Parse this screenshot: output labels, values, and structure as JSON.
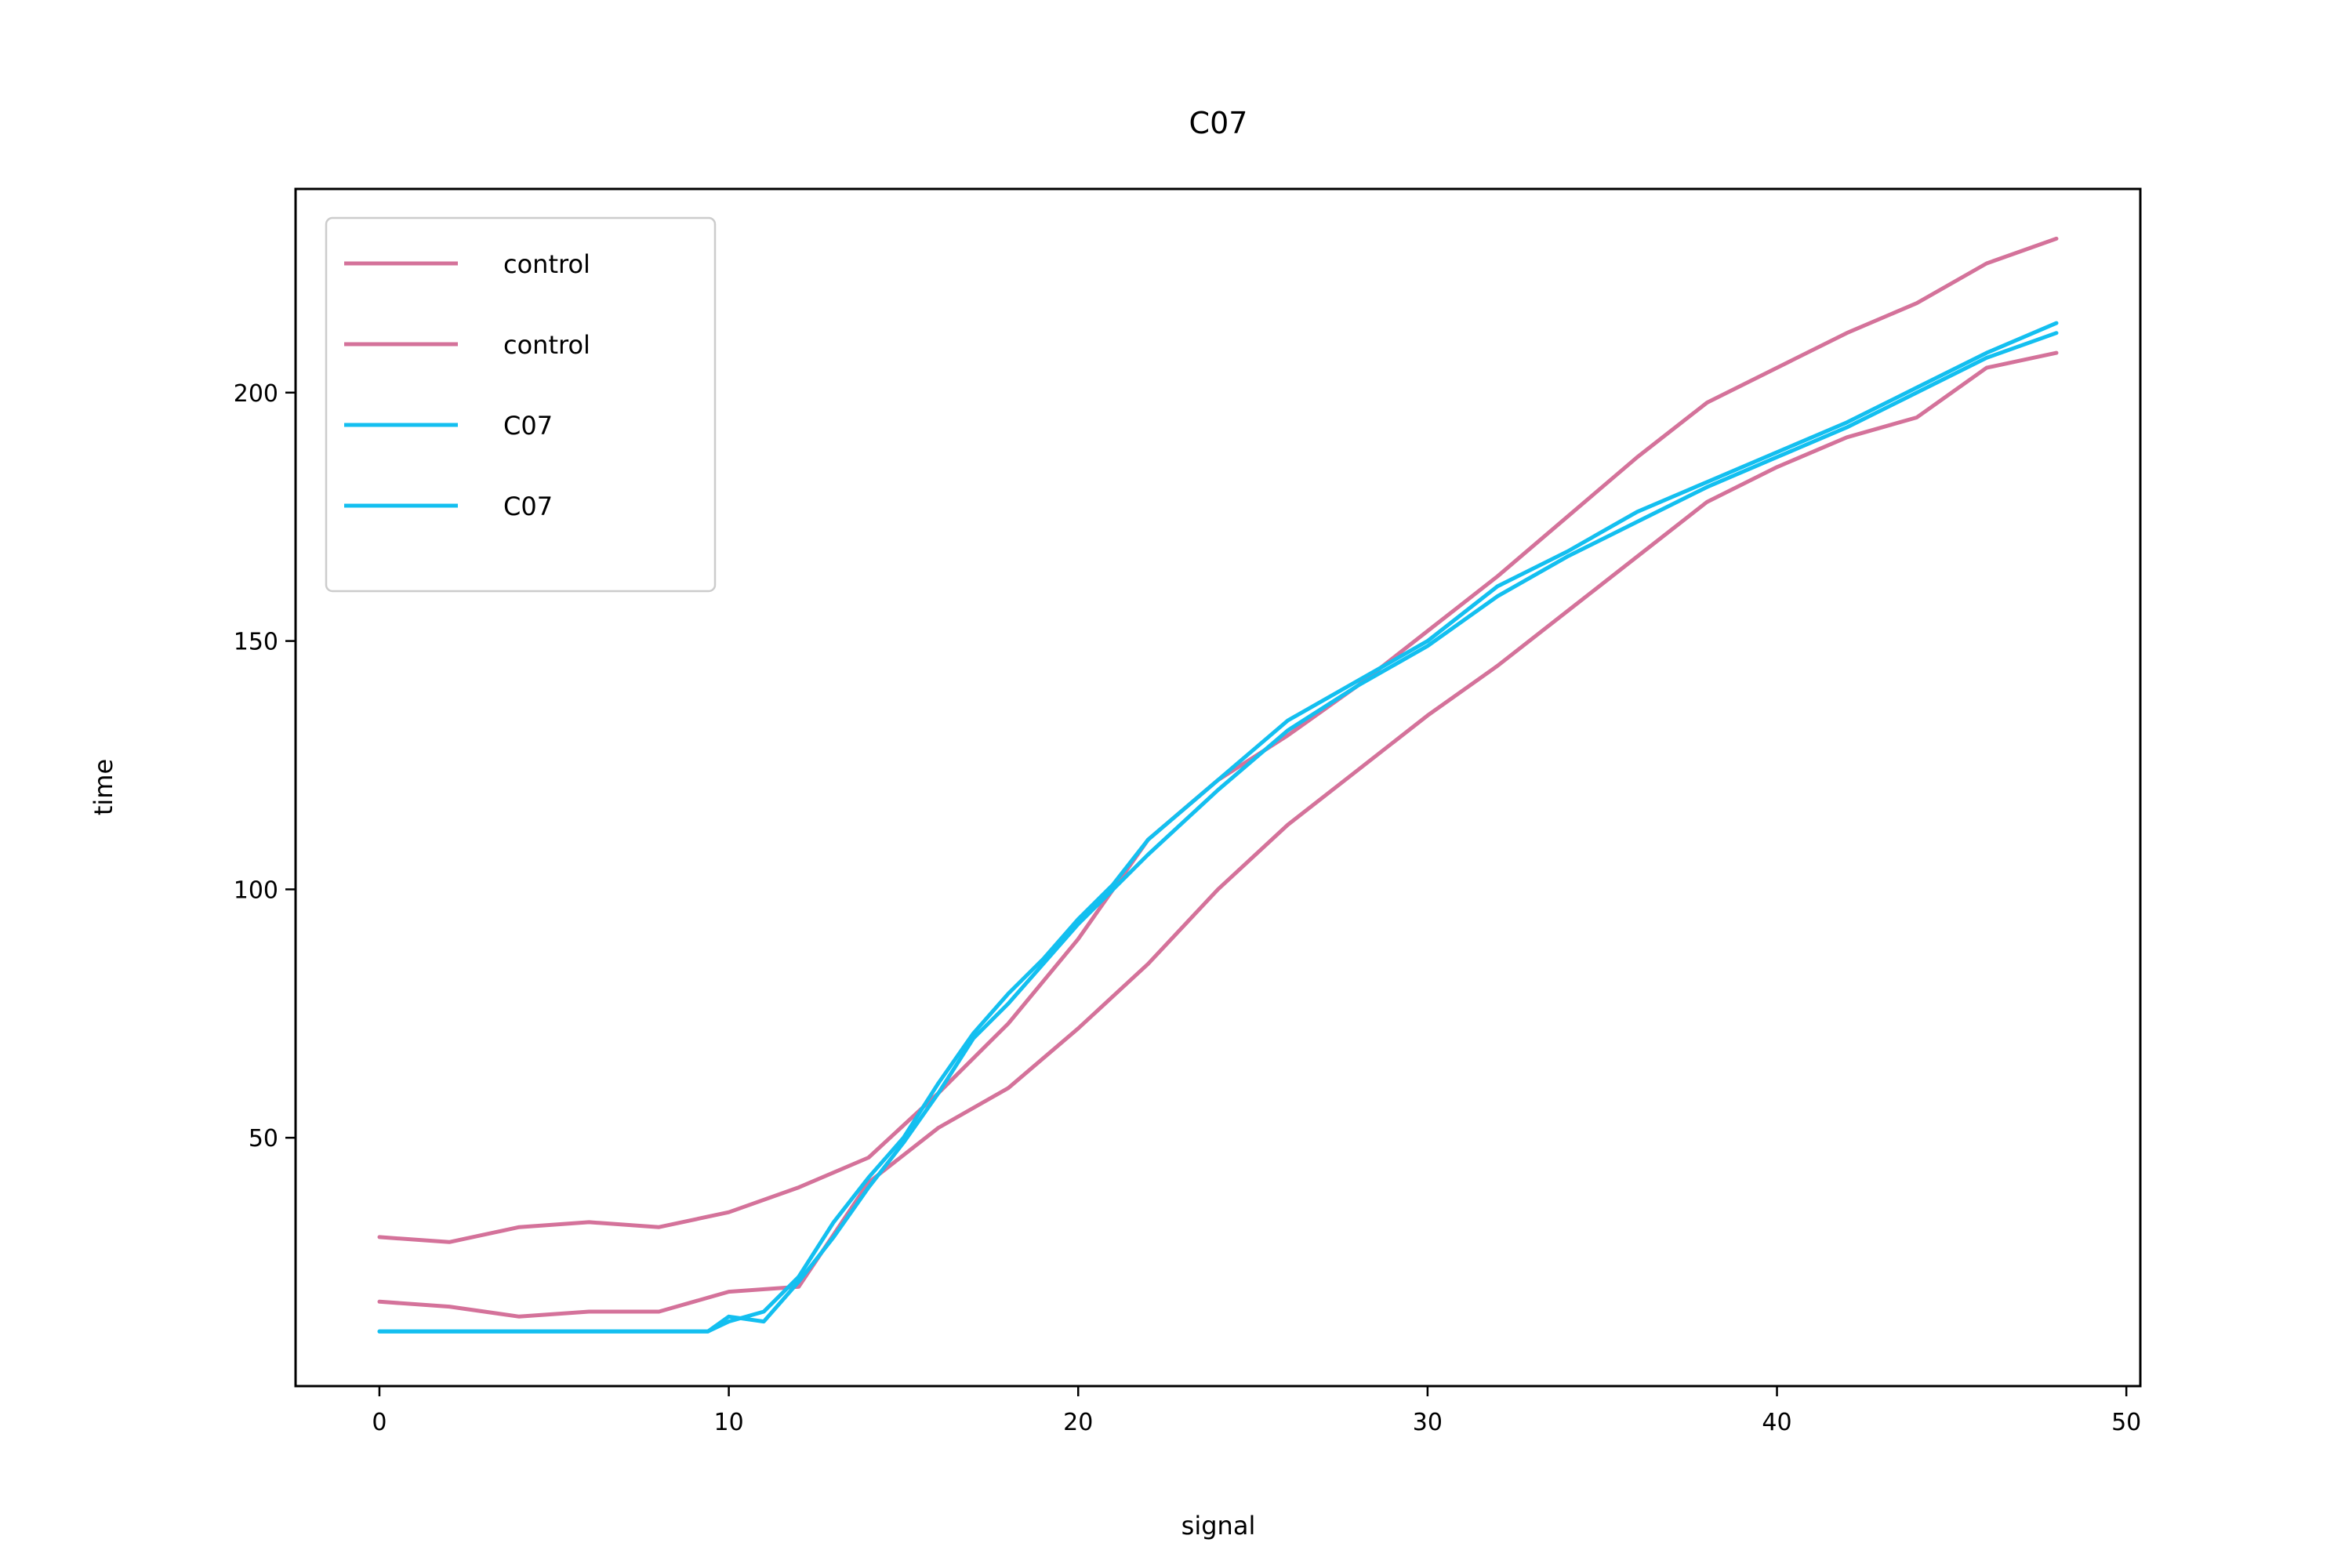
{
  "chart_data": {
    "type": "line",
    "title": "C07",
    "xlabel": "signal",
    "ylabel": "time",
    "xlim": [
      -2.4,
      50.4
    ],
    "ylim": [
      0,
      241
    ],
    "xticks": [
      0,
      10,
      20,
      30,
      40,
      50
    ],
    "yticks": [
      50,
      100,
      150,
      200
    ],
    "grid": false,
    "legend": {
      "position": "top-left"
    },
    "colors": {
      "control": "#d4729a",
      "C07": "#13bff0"
    },
    "series": [
      {
        "name": "control",
        "color": "#d4729a",
        "x": [
          0,
          2,
          4,
          6,
          8,
          10,
          12,
          14,
          16,
          18,
          20,
          22,
          24,
          26,
          28,
          30,
          32,
          34,
          36,
          38,
          40,
          42,
          44,
          46,
          48
        ],
        "y": [
          30,
          29,
          32,
          33,
          32,
          35,
          40,
          46,
          59,
          73,
          90,
          110,
          122,
          131,
          141,
          152,
          163,
          175,
          187,
          198,
          205,
          212,
          218,
          226,
          231
        ]
      },
      {
        "name": "control",
        "color": "#d4729a",
        "x": [
          0,
          2,
          4,
          6,
          8,
          10,
          12,
          14,
          16,
          18,
          20,
          22,
          24,
          26,
          28,
          30,
          32,
          34,
          36,
          38,
          40,
          42,
          44,
          46,
          48
        ],
        "y": [
          17,
          16,
          14,
          15,
          15,
          19,
          20,
          41,
          52,
          60,
          72,
          85,
          100,
          113,
          124,
          135,
          145,
          156,
          167,
          178,
          185,
          191,
          195,
          205,
          208
        ]
      },
      {
        "name": "C07",
        "color": "#13bff0",
        "x": [
          0,
          2,
          4,
          6,
          8,
          9.4,
          10,
          11,
          12,
          13,
          14,
          15,
          16,
          17,
          18,
          19,
          20,
          21,
          22,
          24,
          26,
          28,
          30,
          32,
          34,
          36,
          38,
          40,
          42,
          44,
          46,
          48
        ],
        "y": [
          11,
          11,
          11,
          11,
          11,
          11,
          13,
          15,
          22,
          33,
          42,
          50,
          61,
          71,
          79,
          86,
          94,
          101,
          110,
          122,
          134,
          142,
          150,
          161,
          168,
          176,
          182,
          188,
          194,
          201,
          208,
          214
        ]
      },
      {
        "name": "C07",
        "color": "#13bff0",
        "x": [
          0,
          2,
          4,
          6,
          8,
          9.4,
          10,
          11,
          12,
          13,
          14,
          15,
          16,
          17,
          18,
          19,
          20,
          21,
          22,
          24,
          26,
          28,
          30,
          32,
          34,
          36,
          38,
          40,
          42,
          44,
          46,
          48
        ],
        "y": [
          11,
          11,
          11,
          11,
          11,
          11,
          14,
          13,
          21,
          30,
          40,
          49,
          59,
          70,
          77,
          85,
          93,
          100,
          107,
          120,
          132,
          141,
          149,
          159,
          167,
          174,
          181,
          187,
          193,
          200,
          207,
          212
        ]
      }
    ]
  }
}
